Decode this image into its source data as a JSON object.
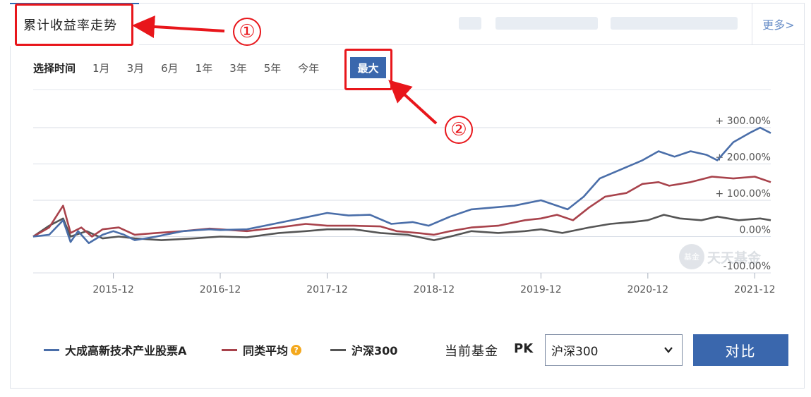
{
  "tabs": {
    "active_label": "累计收益率走势",
    "more_label": "更多>"
  },
  "annotations": {
    "marker_1": "①",
    "marker_2": "②",
    "color": "#e8161b"
  },
  "range_selector": {
    "label": "选择时间",
    "options": [
      "1月",
      "3月",
      "6月",
      "1年",
      "3年",
      "5年",
      "今年"
    ],
    "active": "最大"
  },
  "watermark": {
    "logo_text": "基金",
    "text": "天天基金"
  },
  "chart_data": {
    "type": "line",
    "y_tick_labels": [
      "+ 300.00%",
      "+ 200.00%",
      "+ 100.00%",
      "0.00%",
      "-100.00%"
    ],
    "y_ticks": [
      300,
      200,
      100,
      0,
      -100
    ],
    "ylim": [
      -100,
      300
    ],
    "x_tick_labels": [
      "2015-12",
      "2016-12",
      "2017-12",
      "2018-12",
      "2019-12",
      "2020-12",
      "2021-12"
    ],
    "x_ticks": [
      2015.95,
      2016.95,
      2017.95,
      2018.95,
      2019.95,
      2020.95,
      2021.95
    ],
    "xlim": [
      2015.2,
      2022.1
    ],
    "grid": true,
    "series": [
      {
        "name": "大成高新技术产业股票A",
        "color": "#4a6ea9",
        "points": [
          [
            2015.2,
            0
          ],
          [
            2015.35,
            5
          ],
          [
            2015.48,
            45
          ],
          [
            2015.55,
            -15
          ],
          [
            2015.62,
            15
          ],
          [
            2015.72,
            -18
          ],
          [
            2015.85,
            5
          ],
          [
            2015.95,
            15
          ],
          [
            2016.05,
            5
          ],
          [
            2016.15,
            -10
          ],
          [
            2016.35,
            0
          ],
          [
            2016.6,
            15
          ],
          [
            2016.85,
            20
          ],
          [
            2016.95,
            18
          ],
          [
            2017.2,
            20
          ],
          [
            2017.45,
            35
          ],
          [
            2017.7,
            50
          ],
          [
            2017.95,
            65
          ],
          [
            2018.15,
            58
          ],
          [
            2018.35,
            60
          ],
          [
            2018.55,
            35
          ],
          [
            2018.75,
            40
          ],
          [
            2018.9,
            30
          ],
          [
            2019.1,
            55
          ],
          [
            2019.3,
            75
          ],
          [
            2019.5,
            80
          ],
          [
            2019.7,
            85
          ],
          [
            2019.95,
            100
          ],
          [
            2020.05,
            90
          ],
          [
            2020.2,
            75
          ],
          [
            2020.35,
            110
          ],
          [
            2020.5,
            160
          ],
          [
            2020.7,
            185
          ],
          [
            2020.9,
            210
          ],
          [
            2021.05,
            235
          ],
          [
            2021.2,
            220
          ],
          [
            2021.35,
            235
          ],
          [
            2021.5,
            225
          ],
          [
            2021.6,
            210
          ],
          [
            2021.75,
            260
          ],
          [
            2021.9,
            285
          ],
          [
            2022.0,
            300
          ],
          [
            2022.1,
            285
          ]
        ]
      },
      {
        "name": "同类平均",
        "color": "#a8424b",
        "points": [
          [
            2015.2,
            0
          ],
          [
            2015.35,
            25
          ],
          [
            2015.48,
            85
          ],
          [
            2015.55,
            10
          ],
          [
            2015.65,
            25
          ],
          [
            2015.75,
            0
          ],
          [
            2015.85,
            20
          ],
          [
            2016.0,
            25
          ],
          [
            2016.15,
            5
          ],
          [
            2016.35,
            10
          ],
          [
            2016.6,
            15
          ],
          [
            2016.85,
            22
          ],
          [
            2016.95,
            20
          ],
          [
            2017.2,
            15
          ],
          [
            2017.5,
            25
          ],
          [
            2017.75,
            35
          ],
          [
            2017.95,
            30
          ],
          [
            2018.2,
            30
          ],
          [
            2018.45,
            28
          ],
          [
            2018.6,
            15
          ],
          [
            2018.8,
            10
          ],
          [
            2018.95,
            5
          ],
          [
            2019.1,
            15
          ],
          [
            2019.3,
            25
          ],
          [
            2019.55,
            30
          ],
          [
            2019.8,
            45
          ],
          [
            2019.95,
            50
          ],
          [
            2020.1,
            60
          ],
          [
            2020.25,
            45
          ],
          [
            2020.4,
            80
          ],
          [
            2020.55,
            110
          ],
          [
            2020.75,
            120
          ],
          [
            2020.9,
            145
          ],
          [
            2021.05,
            150
          ],
          [
            2021.15,
            140
          ],
          [
            2021.35,
            150
          ],
          [
            2021.55,
            165
          ],
          [
            2021.75,
            160
          ],
          [
            2021.95,
            165
          ],
          [
            2022.1,
            150
          ]
        ]
      },
      {
        "name": "沪深300",
        "color": "#555555",
        "points": [
          [
            2015.2,
            0
          ],
          [
            2015.35,
            30
          ],
          [
            2015.48,
            50
          ],
          [
            2015.55,
            0
          ],
          [
            2015.7,
            15
          ],
          [
            2015.85,
            -5
          ],
          [
            2016.0,
            0
          ],
          [
            2016.15,
            -5
          ],
          [
            2016.4,
            -10
          ],
          [
            2016.7,
            -5
          ],
          [
            2016.95,
            0
          ],
          [
            2017.2,
            -2
          ],
          [
            2017.5,
            10
          ],
          [
            2017.75,
            15
          ],
          [
            2017.95,
            20
          ],
          [
            2018.2,
            20
          ],
          [
            2018.45,
            10
          ],
          [
            2018.7,
            5
          ],
          [
            2018.95,
            -10
          ],
          [
            2019.1,
            0
          ],
          [
            2019.3,
            15
          ],
          [
            2019.55,
            10
          ],
          [
            2019.8,
            15
          ],
          [
            2019.95,
            20
          ],
          [
            2020.15,
            10
          ],
          [
            2020.4,
            25
          ],
          [
            2020.6,
            35
          ],
          [
            2020.8,
            40
          ],
          [
            2020.95,
            45
          ],
          [
            2021.1,
            60
          ],
          [
            2021.25,
            50
          ],
          [
            2021.45,
            45
          ],
          [
            2021.6,
            55
          ],
          [
            2021.8,
            45
          ],
          [
            2022.0,
            50
          ],
          [
            2022.1,
            45
          ]
        ]
      }
    ]
  },
  "legend": [
    {
      "label": "大成高新技术产业股票A",
      "color": "#4a6ea9"
    },
    {
      "label": "同类平均",
      "color": "#a8424b",
      "help_icon": "?"
    },
    {
      "label": "沪深300",
      "color": "#555555"
    }
  ],
  "compare": {
    "current_fund_label": "当前基金",
    "pk_label": "PK",
    "selected": "沪深300",
    "button_label": "对比"
  }
}
